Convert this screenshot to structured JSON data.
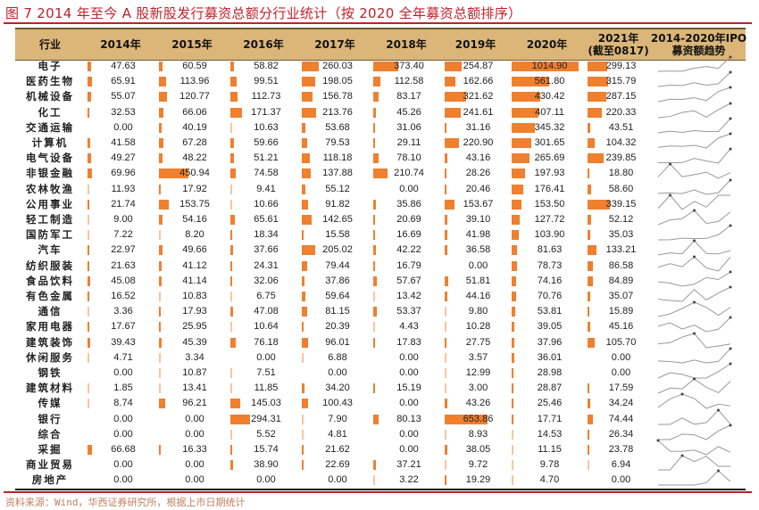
{
  "title": "图 7   2014 年至今 A 股新股发行募资总额分行业统计（按 2020 全年募资总额排序）",
  "headers": [
    "行业",
    "2014年",
    "2015年",
    "2016年",
    "2017年",
    "2018年",
    "2019年",
    "2020年",
    "2021年\n(截至0817)",
    "2014-2020年IPO\n募资额趋势"
  ],
  "colors": {
    "bar": "#f07f2e",
    "header_bg": "#dcb679",
    "title": "#c0202a",
    "spark": "#999999"
  },
  "rows": [
    [
      "电子",
      "47.63",
      "60.59",
      "58.82",
      "260.03",
      "373.40",
      "254.87",
      "1014.90",
      "299.13"
    ],
    [
      "医药生物",
      "65.91",
      "113.96",
      "99.51",
      "198.05",
      "112.58",
      "162.66",
      "561.80",
      "315.79"
    ],
    [
      "机械设备",
      "55.07",
      "120.77",
      "112.73",
      "156.78",
      "83.17",
      "321.62",
      "430.42",
      "287.15"
    ],
    [
      "化工",
      "32.53",
      "66.06",
      "171.37",
      "213.76",
      "45.26",
      "241.61",
      "407.11",
      "220.33"
    ],
    [
      "交通运输",
      "0.00",
      "40.19",
      "10.63",
      "53.68",
      "31.06",
      "31.16",
      "345.32",
      "43.51"
    ],
    [
      "计算机",
      "41.58",
      "67.28",
      "59.66",
      "79.53",
      "29.11",
      "220.90",
      "301.65",
      "104.32"
    ],
    [
      "电气设备",
      "49.27",
      "48.22",
      "51.21",
      "118.18",
      "78.10",
      "43.16",
      "265.69",
      "239.85"
    ],
    [
      "非银金融",
      "69.96",
      "450.94",
      "74.58",
      "137.88",
      "210.74",
      "28.26",
      "197.93",
      "18.80"
    ],
    [
      "农林牧渔",
      "11.93",
      "17.92",
      "9.41",
      "55.12",
      "0.00",
      "20.46",
      "176.41",
      "58.60"
    ],
    [
      "公用事业",
      "21.74",
      "153.75",
      "10.66",
      "91.82",
      "35.86",
      "153.67",
      "153.50",
      "339.15"
    ],
    [
      "轻工制造",
      "9.00",
      "54.16",
      "65.61",
      "142.65",
      "20.69",
      "39.10",
      "127.72",
      "52.12"
    ],
    [
      "国防军工",
      "7.22",
      "8.20",
      "18.34",
      "15.58",
      "16.69",
      "41.98",
      "103.90",
      "35.03"
    ],
    [
      "汽车",
      "22.97",
      "49.66",
      "37.66",
      "205.02",
      "42.22",
      "36.58",
      "81.63",
      "133.21"
    ],
    [
      "纺织服装",
      "21.63",
      "41.12",
      "24.31",
      "79.44",
      "16.79",
      "0.00",
      "78.73",
      "86.58"
    ],
    [
      "食品饮料",
      "45.08",
      "41.14",
      "32.06",
      "37.86",
      "57.67",
      "51.81",
      "74.16",
      "84.89"
    ],
    [
      "有色金属",
      "16.52",
      "10.83",
      "6.75",
      "59.64",
      "13.42",
      "44.16",
      "70.76",
      "35.07"
    ],
    [
      "通信",
      "3.36",
      "17.93",
      "47.08",
      "81.15",
      "53.37",
      "9.80",
      "53.81",
      "15.89"
    ],
    [
      "家用电器",
      "17.67",
      "25.95",
      "10.64",
      "20.39",
      "4.43",
      "10.28",
      "39.05",
      "45.16"
    ],
    [
      "建筑装饰",
      "39.43",
      "45.39",
      "76.18",
      "96.01",
      "17.83",
      "27.75",
      "37.96",
      "105.70"
    ],
    [
      "休闲服务",
      "4.71",
      "3.34",
      "0.00",
      "6.88",
      "0.00",
      "3.57",
      "36.01",
      "0.00"
    ],
    [
      "钢铁",
      "0.00",
      "10.87",
      "7.51",
      "0.00",
      "0.00",
      "12.99",
      "28.98",
      "0.00"
    ],
    [
      "建筑材料",
      "1.85",
      "13.41",
      "11.85",
      "34.20",
      "15.19",
      "3.00",
      "28.87",
      "17.59"
    ],
    [
      "传媒",
      "8.74",
      "96.21",
      "145.03",
      "100.43",
      "0.00",
      "43.26",
      "25.46",
      "34.24"
    ],
    [
      "银行",
      "0.00",
      "0.00",
      "294.31",
      "7.90",
      "80.13",
      "653.86",
      "17.71",
      "74.44"
    ],
    [
      "综合",
      "0.00",
      "0.00",
      "5.52",
      "4.81",
      "0.00",
      "8.93",
      "14.53",
      "26.34"
    ],
    [
      "采掘",
      "66.68",
      "16.33",
      "15.74",
      "21.62",
      "0.00",
      "38.05",
      "11.15",
      "23.78"
    ],
    [
      "商业贸易",
      "0.00",
      "0.00",
      "38.90",
      "22.69",
      "37.21",
      "9.72",
      "9.78",
      "6.94"
    ],
    [
      "房地产",
      "0.00",
      "0.00",
      "0.00",
      "0.00",
      "3.22",
      "19.29",
      "4.70",
      "0.00"
    ]
  ],
  "source": "资料来源：Wind，华西证券研究所，根据上市日期统计"
}
